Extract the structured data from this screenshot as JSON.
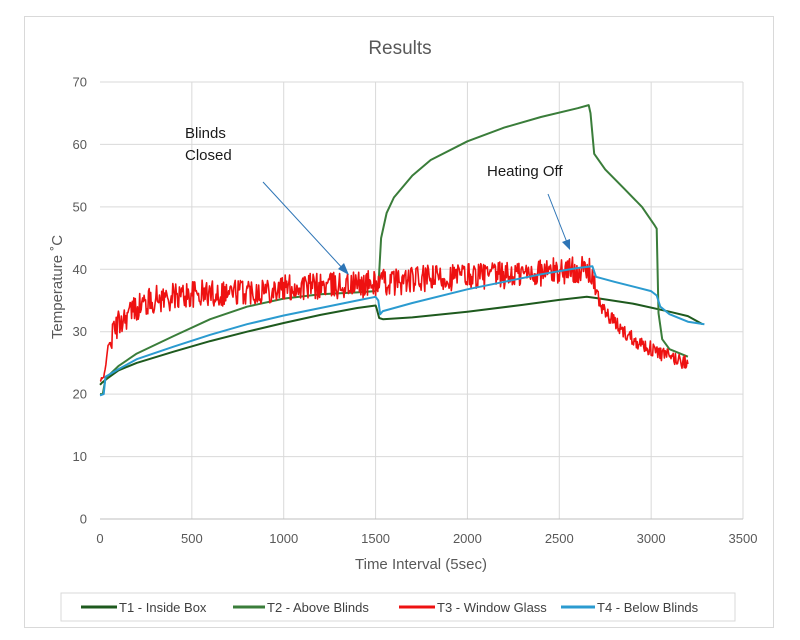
{
  "chart_data": {
    "type": "line",
    "title": "Results",
    "xlabel": "Time Interval (5sec)",
    "ylabel": "Temperature ˚C",
    "xlim": [
      0,
      3500
    ],
    "ylim": [
      0,
      70
    ],
    "xticks": [
      0,
      500,
      1000,
      1500,
      2000,
      2500,
      3000,
      3500
    ],
    "yticks": [
      0,
      10,
      20,
      30,
      40,
      50,
      60,
      70
    ],
    "grid": true,
    "legend_position": "bottom",
    "series": [
      {
        "name": "T1 - Inside Box",
        "color": "#1e5a1e",
        "noise": 0,
        "points": [
          [
            0,
            21.5
          ],
          [
            10,
            21.8
          ],
          [
            40,
            22.5
          ],
          [
            100,
            23.8
          ],
          [
            200,
            25
          ],
          [
            400,
            26.8
          ],
          [
            600,
            28.5
          ],
          [
            800,
            30
          ],
          [
            1000,
            31.4
          ],
          [
            1200,
            32.7
          ],
          [
            1400,
            33.8
          ],
          [
            1500,
            34.2
          ],
          [
            1505,
            33.8
          ],
          [
            1520,
            32.2
          ],
          [
            1540,
            32
          ],
          [
            1700,
            32.3
          ],
          [
            2000,
            33.2
          ],
          [
            2300,
            34.3
          ],
          [
            2500,
            35.1
          ],
          [
            2650,
            35.6
          ],
          [
            2700,
            35.4
          ],
          [
            2900,
            34.5
          ],
          [
            3100,
            33.2
          ],
          [
            3200,
            32.5
          ],
          [
            3280,
            31.2
          ]
        ]
      },
      {
        "name": "T2 - Above Blinds",
        "color": "#3a7d3a",
        "noise": 0,
        "points": [
          [
            0,
            20
          ],
          [
            15,
            20
          ],
          [
            30,
            22.5
          ],
          [
            100,
            24.5
          ],
          [
            200,
            26.5
          ],
          [
            400,
            29.3
          ],
          [
            600,
            32
          ],
          [
            800,
            34
          ],
          [
            1000,
            35.3
          ],
          [
            1200,
            36
          ],
          [
            1400,
            36.3
          ],
          [
            1500,
            36.5
          ],
          [
            1515,
            37
          ],
          [
            1530,
            45
          ],
          [
            1560,
            49
          ],
          [
            1600,
            51.5
          ],
          [
            1700,
            55
          ],
          [
            1800,
            57.5
          ],
          [
            2000,
            60.5
          ],
          [
            2200,
            62.7
          ],
          [
            2400,
            64.4
          ],
          [
            2600,
            65.8
          ],
          [
            2660,
            66.3
          ],
          [
            2670,
            65
          ],
          [
            2690,
            58.5
          ],
          [
            2750,
            56
          ],
          [
            2850,
            53
          ],
          [
            2950,
            50
          ],
          [
            3020,
            47
          ],
          [
            3030,
            46.5
          ],
          [
            3040,
            33
          ],
          [
            3060,
            28.8
          ],
          [
            3100,
            27.2
          ],
          [
            3200,
            26
          ]
        ]
      },
      {
        "name": "T3 - Window Glass",
        "color": "#ee1111",
        "noise": 1,
        "points": [
          [
            0,
            22
          ],
          [
            20,
            22.5
          ],
          [
            40,
            27
          ],
          [
            80,
            30.5
          ],
          [
            120,
            32
          ],
          [
            200,
            34
          ],
          [
            300,
            35.2
          ],
          [
            500,
            36
          ],
          [
            800,
            36.5
          ],
          [
            1000,
            37
          ],
          [
            1200,
            37.3
          ],
          [
            1400,
            37.5
          ],
          [
            1600,
            38
          ],
          [
            1800,
            38.5
          ],
          [
            2000,
            39
          ],
          [
            2200,
            39
          ],
          [
            2400,
            39.5
          ],
          [
            2600,
            40
          ],
          [
            2680,
            39.5
          ],
          [
            2700,
            36
          ],
          [
            2750,
            33
          ],
          [
            2850,
            30
          ],
          [
            2950,
            28
          ],
          [
            3050,
            26.5
          ],
          [
            3200,
            25
          ]
        ]
      },
      {
        "name": "T4 - Below Blinds",
        "color": "#2b9bd0",
        "noise": 0,
        "points": [
          [
            0,
            19.8
          ],
          [
            20,
            20
          ],
          [
            30,
            22.8
          ],
          [
            100,
            24
          ],
          [
            200,
            25.6
          ],
          [
            400,
            27.6
          ],
          [
            600,
            29.5
          ],
          [
            800,
            31.2
          ],
          [
            1000,
            32.6
          ],
          [
            1200,
            33.8
          ],
          [
            1400,
            35
          ],
          [
            1500,
            35.6
          ],
          [
            1515,
            35
          ],
          [
            1525,
            32.8
          ],
          [
            1540,
            33.3
          ],
          [
            1700,
            34.6
          ],
          [
            2000,
            36.8
          ],
          [
            2200,
            38
          ],
          [
            2400,
            39.2
          ],
          [
            2600,
            40.2
          ],
          [
            2680,
            40.5
          ],
          [
            2700,
            38.8
          ],
          [
            2800,
            38
          ],
          [
            3000,
            36.5
          ],
          [
            3030,
            35.8
          ],
          [
            3050,
            34
          ],
          [
            3100,
            32.8
          ],
          [
            3200,
            31.6
          ],
          [
            3290,
            31.2
          ]
        ]
      }
    ],
    "annotations": [
      {
        "text": "Blinds",
        "x": 1480,
        "y": 37.5
      },
      {
        "text": "Closed",
        "x": 1480,
        "y": 37.5
      },
      {
        "text": "Heating Off",
        "x": 2600,
        "y": 43.5
      }
    ]
  }
}
